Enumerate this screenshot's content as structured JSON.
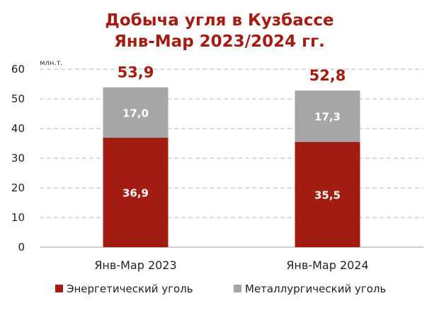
{
  "chart_data": {
    "type": "bar",
    "stacked": true,
    "title": [
      "Добыча угля в Кузбассе",
      "Янв-Мар 2023/2024 гг."
    ],
    "unit_label": "млн.т.",
    "categories": [
      "Янв-Мар 2023",
      "Янв-Мар 2024"
    ],
    "series": [
      {
        "name": "Энергетический уголь",
        "values": [
          36.9,
          35.5
        ],
        "labels": [
          "36,9",
          "35,5"
        ],
        "color": "#a31c12"
      },
      {
        "name": "Металлургический уголь",
        "values": [
          17.0,
          17.3
        ],
        "labels": [
          "17,0",
          "17,3"
        ],
        "color": "#a6a6a6"
      }
    ],
    "totals": [
      53.9,
      52.8
    ],
    "total_labels": [
      "53,9",
      "52,8"
    ],
    "ylim": [
      0,
      60
    ],
    "yticks": [
      0,
      10,
      20,
      30,
      40,
      50,
      60
    ],
    "grid": true,
    "legend_position": "bottom",
    "title_color": "#a31c12",
    "total_color": "#a31c12"
  }
}
